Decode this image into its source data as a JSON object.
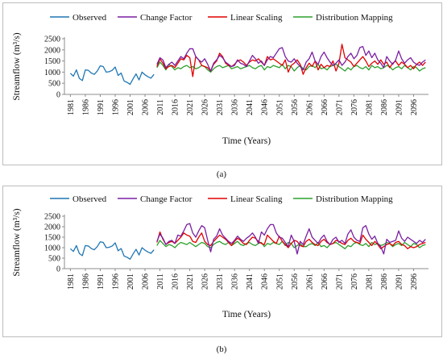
{
  "chart_data": [
    {
      "type": "line",
      "panel_label": "(a)",
      "ylabel": "Streamflow (m³/s)",
      "xlabel": "Time (Years)",
      "ylim": [
        0,
        2500
      ],
      "yticks": [
        0,
        500,
        1000,
        1500,
        2000,
        2500
      ],
      "xlim": [
        1979,
        2101
      ],
      "xticks": [
        1981,
        1986,
        1991,
        1996,
        2001,
        2006,
        2011,
        2016,
        2021,
        2026,
        2031,
        2036,
        2041,
        2046,
        2051,
        2056,
        2061,
        2066,
        2071,
        2076,
        2081,
        2086,
        2091,
        2096
      ],
      "legend_position": "top",
      "grid": false,
      "series": [
        {
          "name": "Observed",
          "color": "#1f77b4",
          "x_start": 1981,
          "values": [
            950,
            820,
            1100,
            720,
            620,
            1100,
            1080,
            960,
            900,
            1050,
            1280,
            1250,
            1000,
            1020,
            1080,
            1230,
            850,
            960,
            600,
            540,
            450,
            700,
            920,
            650,
            1000,
            880,
            790,
            730,
            900
          ]
        },
        {
          "name": "Change Factor",
          "color": "#7a1fa2",
          "x_start": 2010,
          "values": [
            1350,
            1650,
            1550,
            1200,
            1350,
            1450,
            1300,
            1500,
            1700,
            1600,
            1850,
            2050,
            2050,
            1700,
            1550,
            1450,
            1600,
            1350,
            1050,
            1400,
            1550,
            1750,
            1650,
            1450,
            1350,
            1250,
            1300,
            1550,
            1400,
            1350,
            1250,
            1500,
            1750,
            1600,
            1400,
            1500,
            1300,
            1550,
            1700,
            1650,
            1850,
            2050,
            2100,
            1700,
            1500,
            1450,
            1600,
            1400,
            1250,
            1100,
            1450,
            1600,
            1900,
            1500,
            1350,
            1700,
            1900,
            1650,
            1450,
            1300,
            1400,
            1550,
            1300,
            1450,
            1700,
            1850,
            1600,
            1750,
            2100,
            2150,
            1750,
            1950,
            1650,
            1850,
            1550,
            1400,
            1200,
            1700,
            1500,
            1350,
            1550,
            1950,
            1600,
            1400,
            1550,
            1650,
            1450,
            1350,
            1300,
            1450,
            1550
          ]
        },
        {
          "name": "Linear Scaling",
          "color": "#e00000",
          "x_start": 2010,
          "values": [
            1250,
            1600,
            1400,
            1150,
            1250,
            1300,
            1200,
            1400,
            1600,
            1550,
            1750,
            1650,
            800,
            1700,
            1550,
            1300,
            1250,
            1200,
            1050,
            1350,
            1500,
            1850,
            1700,
            1400,
            1300,
            1250,
            1350,
            1500,
            1550,
            1450,
            1300,
            1450,
            1550,
            1500,
            1600,
            1450,
            1300,
            1700,
            1550,
            1600,
            1500,
            1400,
            1300,
            1550,
            1000,
            1300,
            1400,
            1550,
            1350,
            900,
            1200,
            1400,
            1250,
            1500,
            1100,
            1350,
            1200,
            1300,
            1250,
            1500,
            1050,
            1400,
            2250,
            1650,
            1550,
            1450,
            1250,
            1400,
            1550,
            1700,
            1500,
            1250,
            1400,
            1500,
            1350,
            1550,
            1350,
            1450,
            1200,
            1400,
            1500,
            1300,
            1450,
            1350,
            1200,
            1300,
            1150,
            1350,
            1450,
            1300,
            1450
          ]
        },
        {
          "name": "Distribution Mapping",
          "color": "#2ca02c",
          "x_start": 2010,
          "values": [
            1200,
            1450,
            1300,
            1100,
            1350,
            1250,
            1100,
            1200,
            1150,
            1250,
            1300,
            1200,
            1250,
            1150,
            1200,
            1300,
            1250,
            1100,
            1000,
            1150,
            1250,
            1300,
            1200,
            1250,
            1300,
            1150,
            1200,
            1250,
            1150,
            1200,
            1250,
            1300,
            1200,
            1150,
            1250,
            1300,
            1100,
            1250,
            1200,
            1300,
            1250,
            1200,
            1350,
            1150,
            1300,
            1250,
            1050,
            1200,
            1300,
            1150,
            1100,
            1250,
            1300,
            1200,
            1350,
            1150,
            1200,
            1100,
            1250,
            1300,
            1350,
            1250,
            1150,
            1050,
            1200,
            1100,
            1250,
            1300,
            1200,
            1150,
            1250,
            1100,
            1300,
            1200,
            1250,
            1150,
            1200,
            1300,
            1250,
            1100,
            1200,
            1250,
            1150,
            1300,
            1200,
            1100,
            1250,
            1200,
            1050,
            1150,
            1200
          ]
        }
      ]
    },
    {
      "type": "line",
      "panel_label": "(b)",
      "ylabel": "Streamflow (m³/s)",
      "xlabel": "Time (Years)",
      "ylim": [
        0,
        2500
      ],
      "yticks": [
        0,
        500,
        1000,
        1500,
        2000,
        2500
      ],
      "xlim": [
        1979,
        2101
      ],
      "xticks": [
        1981,
        1986,
        1991,
        1996,
        2001,
        2006,
        2011,
        2016,
        2021,
        2026,
        2031,
        2036,
        2041,
        2046,
        2051,
        2056,
        2061,
        2066,
        2071,
        2076,
        2081,
        2086,
        2091,
        2096
      ],
      "legend_position": "top",
      "grid": false,
      "series": [
        {
          "name": "Observed",
          "color": "#1f77b4",
          "x_start": 1981,
          "values": [
            950,
            820,
            1100,
            720,
            620,
            1100,
            1080,
            960,
            900,
            1050,
            1280,
            1250,
            1000,
            1020,
            1080,
            1230,
            850,
            960,
            600,
            540,
            450,
            700,
            920,
            650,
            1000,
            880,
            790,
            730,
            900
          ]
        },
        {
          "name": "Change Factor",
          "color": "#7a1fa2",
          "x_start": 2010,
          "values": [
            1300,
            1650,
            1450,
            1150,
            1300,
            1350,
            1200,
            1600,
            1550,
            1800,
            2100,
            2150,
            1700,
            1500,
            1800,
            2050,
            1950,
            1350,
            800,
            1400,
            1550,
            1900,
            1600,
            1450,
            1300,
            1200,
            1350,
            1550,
            1400,
            1300,
            1450,
            1550,
            1700,
            1500,
            1200,
            1750,
            1600,
            1900,
            2100,
            2100,
            1700,
            1500,
            1450,
            1250,
            1050,
            1600,
            1300,
            700,
            1300,
            1150,
            1550,
            1900,
            1500,
            1350,
            1200,
            1450,
            1600,
            1300,
            1150,
            1400,
            1500,
            1250,
            1350,
            1200,
            1650,
            1850,
            1500,
            1350,
            1300,
            1950,
            2050,
            1650,
            1400,
            1550,
            1200,
            1050,
            700,
            1400,
            1250,
            1300,
            1350,
            1800,
            1450,
            1300,
            1500,
            1400,
            1300,
            1200,
            1350,
            1250,
            1400
          ]
        },
        {
          "name": "Linear Scaling",
          "color": "#e00000",
          "x_start": 2010,
          "values": [
            1250,
            1750,
            1400,
            1150,
            1250,
            1300,
            1200,
            1350,
            1500,
            1700,
            1600,
            1550,
            1300,
            1250,
            1500,
            1700,
            1300,
            1150,
            1100,
            1300,
            1450,
            1600,
            1500,
            1400,
            1250,
            1100,
            1300,
            1450,
            1350,
            1200,
            1150,
            1350,
            1500,
            1450,
            1300,
            1200,
            1150,
            1600,
            1450,
            1300,
            1200,
            1550,
            1300,
            1150,
            1000,
            1200,
            1350,
            1300,
            1100,
            1050,
            1300,
            1400,
            1250,
            1150,
            1100,
            1300,
            1400,
            1250,
            1150,
            1200,
            1350,
            1300,
            1200,
            1150,
            1350,
            1450,
            1300,
            1250,
            1200,
            1600,
            1400,
            1250,
            1100,
            1300,
            1150,
            950,
            1050,
            1150,
            1200,
            1100,
            1250,
            1300,
            1150,
            1100,
            950,
            1050,
            1000,
            1050,
            1150,
            1200,
            1250
          ]
        },
        {
          "name": "Distribution Mapping",
          "color": "#2ca02c",
          "x_start": 2010,
          "values": [
            1100,
            1350,
            1200,
            1050,
            1150,
            1100,
            1000,
            1150,
            1250,
            1200,
            1150,
            1250,
            1150,
            1050,
            1150,
            1250,
            1200,
            1050,
            1000,
            1150,
            1250,
            1300,
            1200,
            1150,
            1250,
            1100,
            1200,
            1300,
            1150,
            1100,
            1200,
            1250,
            1150,
            1100,
            1200,
            1250,
            1050,
            1200,
            1150,
            1250,
            1200,
            1150,
            1300,
            1100,
            1250,
            1200,
            1000,
            1100,
            1200,
            1050,
            1050,
            1150,
            1200,
            1100,
            1250,
            1050,
            1100,
            1000,
            1150,
            1200,
            1250,
            1150,
            1050,
            950,
            1100,
            1050,
            1200,
            1250,
            1150,
            1100,
            1200,
            1050,
            1250,
            1150,
            1200,
            1100,
            1150,
            1250,
            1200,
            1050,
            1150,
            1200,
            1100,
            1250,
            1150,
            1050,
            1200,
            1150,
            1000,
            1100,
            1150
          ]
        }
      ]
    }
  ]
}
